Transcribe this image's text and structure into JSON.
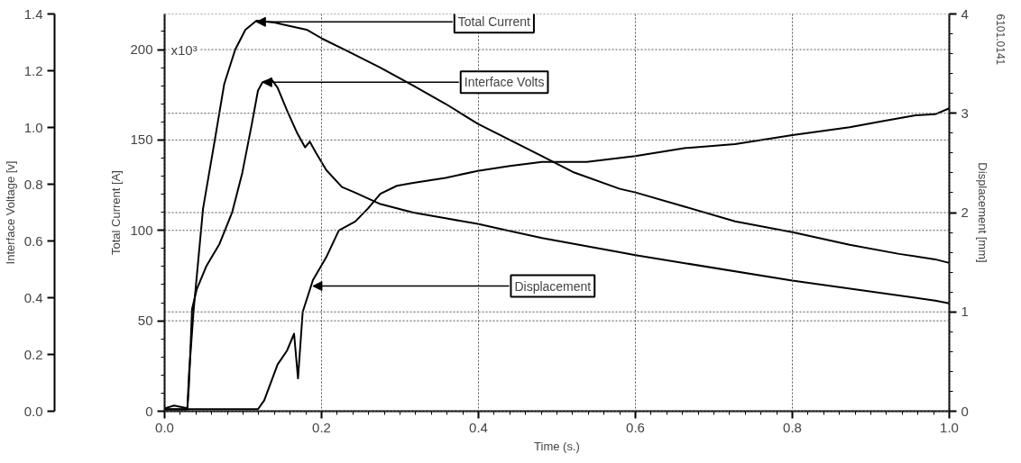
{
  "chart_data": {
    "type": "line",
    "xlabel": "Time (s.)",
    "ylabel": "Interface Voltage [v]",
    "y2label": "Total Current [A]",
    "y3label": "Displacement [mm]",
    "xlim": [
      0,
      1.0
    ],
    "xticks": [
      {
        "value": 0,
        "label": "0.0"
      },
      0.2,
      0.4,
      0.6,
      0.8,
      {
        "value": 1.0,
        "label": "1.0"
      }
    ],
    "ylim": [
      0,
      1.4
    ],
    "yticks": [
      {
        "value": 0,
        "label": "0.0"
      },
      0.2,
      0.4,
      0.6,
      0.8,
      {
        "value": 1.0,
        "label": "1.0"
      },
      1.2,
      1.4
    ],
    "y2lim": [
      0,
      219.7
    ],
    "y2ticks": [
      0,
      50,
      100,
      150,
      200
    ],
    "y3lim": [
      0,
      4
    ],
    "y3ticks": [
      0,
      1,
      2,
      3,
      4
    ],
    "grid": true,
    "line_style": "solid",
    "marker": "none",
    "series": [
      {
        "name": "Total Current",
        "color": "#000000",
        "axis": "y2",
        "x": [
          0,
          0.029,
          0.031,
          0.037,
          0.049,
          0.064,
          0.076,
          0.09,
          0.103,
          0.117,
          0.14,
          0.16,
          0.181,
          0.201,
          0.234,
          0.275,
          0.317,
          0.358,
          0.399,
          0.44,
          0.481,
          0.522,
          0.58,
          0.6,
          0.664,
          0.727,
          0.8,
          0.873,
          0.936,
          0.982,
          1.0
        ],
        "values": [
          1,
          1,
          20,
          56,
          112,
          150,
          181,
          200,
          211,
          216,
          215,
          213,
          211,
          206,
          199,
          190,
          180,
          170,
          159,
          150,
          141,
          132,
          123,
          121,
          113,
          105,
          99,
          92,
          87,
          84,
          82
        ]
      },
      {
        "name": "Interface Volts",
        "color": "#000000",
        "axis": "y",
        "x": [
          0,
          0.012,
          0.029,
          0.031,
          0.035,
          0.041,
          0.053,
          0.07,
          0.086,
          0.099,
          0.111,
          0.119,
          0.125,
          0.136,
          0.144,
          0.156,
          0.169,
          0.179,
          0.185,
          0.193,
          0.206,
          0.226,
          0.243,
          0.275,
          0.317,
          0.358,
          0.399,
          0.481,
          0.58,
          0.6,
          0.8,
          0.982,
          1.0
        ],
        "values": [
          0.01,
          0.02,
          0.01,
          0.09,
          0.36,
          0.43,
          0.51,
          0.59,
          0.7,
          0.84,
          1.01,
          1.13,
          1.16,
          1.17,
          1.14,
          1.06,
          0.98,
          0.93,
          0.95,
          0.91,
          0.85,
          0.79,
          0.77,
          0.73,
          0.7,
          0.68,
          0.66,
          0.61,
          0.56,
          0.55,
          0.46,
          0.39,
          0.38
        ]
      },
      {
        "name": "Displacement",
        "color": "#000000",
        "axis": "y3",
        "x": [
          0,
          0.119,
          0.127,
          0.144,
          0.156,
          0.165,
          0.17,
          0.176,
          0.189,
          0.206,
          0.222,
          0.243,
          0.259,
          0.275,
          0.296,
          0.317,
          0.358,
          0.399,
          0.44,
          0.481,
          0.538,
          0.6,
          0.664,
          0.727,
          0.8,
          0.873,
          0.915,
          0.957,
          0.982,
          1.0
        ],
        "values": [
          0.02,
          0.02,
          0.11,
          0.47,
          0.61,
          0.78,
          0.33,
          1.0,
          1.32,
          1.55,
          1.82,
          1.91,
          2.04,
          2.19,
          2.27,
          2.3,
          2.35,
          2.42,
          2.47,
          2.51,
          2.51,
          2.57,
          2.65,
          2.69,
          2.78,
          2.86,
          2.92,
          2.98,
          2.99,
          3.05
        ]
      }
    ],
    "annotations": [
      "x10³",
      "6101.0141"
    ]
  }
}
